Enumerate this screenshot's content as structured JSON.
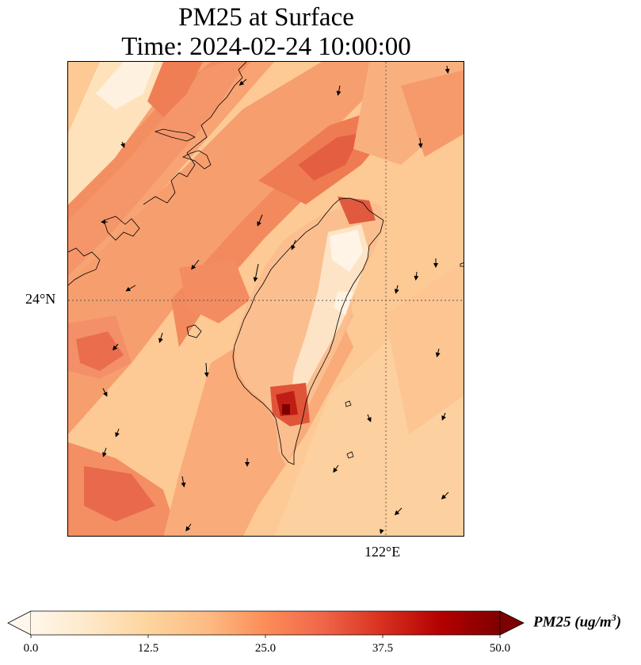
{
  "title_line1": "PM25 at Surface",
  "title_line2": "Time: 2024-02-24 10:00:00",
  "lat_tick": "24°N",
  "lon_tick": "122°E",
  "colorbar": {
    "label_prefix": "PM25 (ug/m",
    "label_exp": "3",
    "label_suffix": ")",
    "ticks": [
      "0.0",
      "12.5",
      "25.0",
      "37.5",
      "50.0"
    ],
    "min": 0,
    "max": 50,
    "extend": "both",
    "colormap": "OrRd",
    "colors": [
      "#fff7ec",
      "#fee8c8",
      "#fdd49e",
      "#fdbb84",
      "#fc8d59",
      "#ef6548",
      "#d7301f",
      "#b30000",
      "#7f0000"
    ]
  },
  "map": {
    "region": "Taiwan and Taiwan Strait",
    "gridlines": "dotted",
    "vectors": "wind arrows"
  }
}
